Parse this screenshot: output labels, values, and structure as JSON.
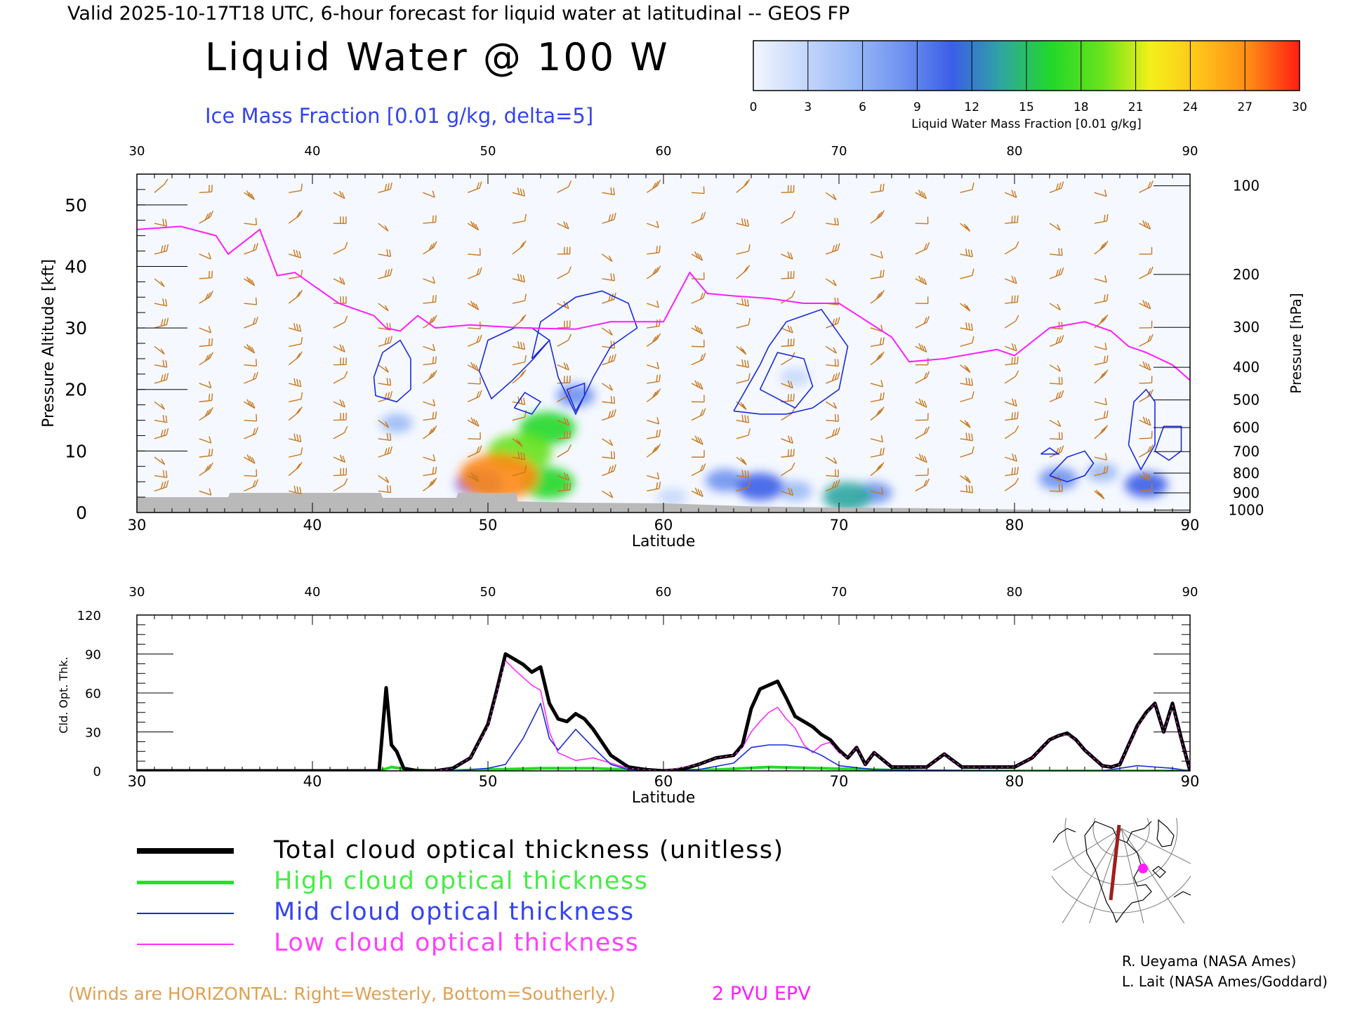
{
  "header": {
    "valid_line": "Valid 2025-10-17T18 UTC, 6-hour forecast for liquid water at latitudinal -- GEOS FP",
    "title": "Liquid Water @ 100 W",
    "subtitle": "Ice Mass Fraction [0.01 g/kg, delta=5]"
  },
  "colorbar": {
    "title": "Liquid Water Mass Fraction [0.01 g/kg]",
    "ticks": [
      "0",
      "3",
      "6",
      "9",
      "12",
      "15",
      "18",
      "21",
      "24",
      "27",
      "30"
    ],
    "colors": [
      "#f2f6ff",
      "#c6d8fb",
      "#9bbaf6",
      "#6f92f0",
      "#3b5ee8",
      "#2fa6a0",
      "#22d82a",
      "#66e21c",
      "#f3f01a",
      "#ffc31a",
      "#ff8a16",
      "#ff1e12"
    ]
  },
  "colors": {
    "ice_contour": "#1a2bdc",
    "epv": "#ff1dff",
    "wind_barb": "#c8781e",
    "terrain": "#b9b9b9",
    "total": "#000000",
    "high": "#22dd22",
    "mid": "#1a2bdc",
    "low": "#ff30ff",
    "map_track": "#a01e1e"
  },
  "chart_data": [
    {
      "type": "heatmap",
      "xlabel": "Latitude",
      "ylabel": "Pressure Altitude [kft]",
      "y2label": "Pressure [hPa]",
      "xlim": [
        30,
        90
      ],
      "ylim": [
        0,
        55
      ],
      "x_ticks": [
        "30",
        "40",
        "50",
        "60",
        "70",
        "80",
        "90"
      ],
      "y_ticks": [
        "0",
        "10",
        "20",
        "30",
        "40",
        "50"
      ],
      "pressure_ticks": [
        {
          "label": "100",
          "kft": 53.1
        },
        {
          "label": "200",
          "kft": 38.7
        },
        {
          "label": "300",
          "kft": 30.1
        },
        {
          "label": "400",
          "kft": 23.6
        },
        {
          "label": "500",
          "kft": 18.3
        },
        {
          "label": "600",
          "kft": 13.8
        },
        {
          "label": "700",
          "kft": 9.9
        },
        {
          "label": "800",
          "kft": 6.4
        },
        {
          "label": "900",
          "kft": 3.2
        },
        {
          "label": "1000",
          "kft": 0.4
        }
      ],
      "liquid_water_blobs": [
        {
          "lat": 50.6,
          "kft": 5.8,
          "value": 27
        },
        {
          "lat": 51.8,
          "kft": 9.7,
          "value": 20
        },
        {
          "lat": 53.4,
          "kft": 13.7,
          "value": 16
        },
        {
          "lat": 53.4,
          "kft": 4.8,
          "value": 15
        },
        {
          "lat": 49.5,
          "kft": 4.8,
          "value": 12
        },
        {
          "lat": 55.0,
          "kft": 19.0,
          "value": 8
        },
        {
          "lat": 44.8,
          "kft": 14.5,
          "value": 5
        },
        {
          "lat": 60.5,
          "kft": 2.5,
          "value": 4
        },
        {
          "lat": 65.5,
          "kft": 4.2,
          "value": 12
        },
        {
          "lat": 63.5,
          "kft": 5.2,
          "value": 8
        },
        {
          "lat": 67.5,
          "kft": 3.5,
          "value": 6
        },
        {
          "lat": 70.5,
          "kft": 2.6,
          "value": 13
        },
        {
          "lat": 72.0,
          "kft": 3.2,
          "value": 7
        },
        {
          "lat": 82.5,
          "kft": 5.5,
          "value": 8
        },
        {
          "lat": 87.5,
          "kft": 4.5,
          "value": 10
        },
        {
          "lat": 85.0,
          "kft": 6.5,
          "value": 5
        },
        {
          "lat": 67.5,
          "kft": 22.0,
          "value": 4
        }
      ],
      "terrain_kft": [
        [
          30,
          2.5
        ],
        [
          35.2,
          2.5
        ],
        [
          35.3,
          3.2
        ],
        [
          43.9,
          3.2
        ],
        [
          44.0,
          2.4
        ],
        [
          48.2,
          2.4
        ],
        [
          48.3,
          3.2
        ],
        [
          51.6,
          3.2
        ],
        [
          51.7,
          1.8
        ],
        [
          55,
          1.6
        ],
        [
          60,
          1.5
        ],
        [
          65,
          1.0
        ],
        [
          70,
          0.8
        ],
        [
          75,
          0.7
        ],
        [
          80,
          0.5
        ],
        [
          85,
          0.3
        ],
        [
          90,
          0.2
        ]
      ],
      "epv_2pvu_line": [
        [
          30,
          46
        ],
        [
          32.5,
          46.5
        ],
        [
          34.5,
          45
        ],
        [
          35.2,
          42
        ],
        [
          37,
          46
        ],
        [
          38,
          38.5
        ],
        [
          39,
          39
        ],
        [
          40,
          37
        ],
        [
          41.5,
          34
        ],
        [
          42.5,
          33
        ],
        [
          43.5,
          32
        ],
        [
          44.2,
          30
        ],
        [
          45,
          29.5
        ],
        [
          46,
          32
        ],
        [
          47,
          30
        ],
        [
          49,
          30.5
        ],
        [
          52,
          30
        ],
        [
          55,
          29.8
        ],
        [
          57,
          31
        ],
        [
          60,
          31
        ],
        [
          61.5,
          39
        ],
        [
          62.5,
          35.6
        ],
        [
          64,
          35.2
        ],
        [
          66,
          34.8
        ],
        [
          68,
          34
        ],
        [
          70,
          34
        ],
        [
          73,
          28.5
        ],
        [
          74,
          24.5
        ],
        [
          76,
          25
        ],
        [
          79,
          26.5
        ],
        [
          80,
          25.5
        ],
        [
          82,
          30
        ],
        [
          84,
          31
        ],
        [
          85.5,
          29.5
        ],
        [
          86.5,
          27
        ],
        [
          87.5,
          26
        ],
        [
          89,
          24
        ],
        [
          90,
          21.5
        ]
      ],
      "ice_contours": [
        [
          [
            43.5,
            22
          ],
          [
            44,
            26
          ],
          [
            45,
            28
          ],
          [
            45.6,
            25
          ],
          [
            45.6,
            20
          ],
          [
            44.8,
            18
          ],
          [
            43.6,
            19
          ],
          [
            43.5,
            22
          ]
        ],
        [
          [
            49.5,
            23
          ],
          [
            50,
            28
          ],
          [
            51.5,
            30
          ],
          [
            52.5,
            30
          ],
          [
            53.5,
            28
          ],
          [
            52.6,
            25
          ],
          [
            51.4,
            21.5
          ],
          [
            50.2,
            18.5
          ],
          [
            49.5,
            23
          ]
        ],
        [
          [
            51.5,
            17
          ],
          [
            52.5,
            16
          ],
          [
            53,
            18
          ],
          [
            52.1,
            19.5
          ],
          [
            51.5,
            17
          ]
        ],
        [
          [
            52.5,
            25
          ],
          [
            53,
            31
          ],
          [
            55,
            35
          ],
          [
            56.5,
            36
          ],
          [
            58,
            34
          ],
          [
            58.5,
            30
          ],
          [
            57,
            27
          ],
          [
            56,
            22
          ],
          [
            55,
            16
          ],
          [
            54,
            22
          ],
          [
            53.5,
            28
          ],
          [
            52.5,
            25
          ]
        ],
        [
          [
            54.5,
            20
          ],
          [
            55,
            16.5
          ],
          [
            55.5,
            19
          ],
          [
            55.5,
            21
          ],
          [
            54.5,
            20
          ]
        ],
        [
          [
            64,
            16.5
          ],
          [
            65.5,
            24
          ],
          [
            66,
            27
          ],
          [
            67,
            31
          ],
          [
            69,
            33
          ],
          [
            70.5,
            27
          ],
          [
            70,
            20
          ],
          [
            68.5,
            17
          ],
          [
            67,
            16
          ],
          [
            65.5,
            16
          ],
          [
            64,
            16.5
          ]
        ],
        [
          [
            65.5,
            20
          ],
          [
            66.5,
            26
          ],
          [
            68,
            25
          ],
          [
            68.5,
            20.5
          ],
          [
            67.5,
            17
          ],
          [
            65.5,
            20
          ]
        ],
        [
          [
            81.5,
            9.5
          ],
          [
            82,
            10.5
          ],
          [
            82.5,
            9.5
          ],
          [
            81.5,
            9.5
          ]
        ],
        [
          [
            82,
            6
          ],
          [
            83,
            9
          ],
          [
            84,
            10
          ],
          [
            84.5,
            8
          ],
          [
            84,
            6
          ],
          [
            83,
            5
          ],
          [
            82,
            6
          ]
        ],
        [
          [
            86.5,
            11
          ],
          [
            86.8,
            18
          ],
          [
            87.5,
            20
          ],
          [
            88,
            18
          ],
          [
            88,
            11
          ],
          [
            87.2,
            7
          ],
          [
            86.5,
            11
          ]
        ],
        [
          [
            88,
            10
          ],
          [
            88.5,
            14
          ],
          [
            89.5,
            14
          ],
          [
            89.5,
            10
          ],
          [
            88.8,
            8.5
          ],
          [
            88,
            10
          ]
        ]
      ]
    },
    {
      "type": "line",
      "xlabel": "Latitude",
      "ylabel": "Cld. Opt. Thk.",
      "xlim": [
        30,
        90
      ],
      "ylim": [
        0,
        120
      ],
      "x_ticks": [
        "30",
        "40",
        "50",
        "60",
        "70",
        "80",
        "90"
      ],
      "y_ticks": [
        "0",
        "30",
        "60",
        "90",
        "120"
      ],
      "series": [
        {
          "key": "total",
          "x": [
            30,
            43.8,
            44.2,
            44.5,
            44.8,
            45.2,
            46,
            47,
            48,
            49,
            50,
            50.5,
            51,
            51.5,
            52,
            52.5,
            53,
            53.5,
            54,
            54.5,
            55,
            55.5,
            56,
            57,
            58,
            59,
            60,
            61,
            62,
            63,
            64,
            64.5,
            65,
            65.5,
            66,
            66.5,
            67,
            67.5,
            68,
            68.5,
            69,
            69.5,
            70,
            70.5,
            71,
            71.5,
            72,
            73,
            74,
            75,
            76,
            77,
            78,
            79,
            80,
            81,
            82,
            82.5,
            83,
            83.5,
            84,
            84.5,
            85,
            85.5,
            86,
            86.5,
            87,
            87.5,
            88,
            88.5,
            89,
            89.5,
            90
          ],
          "values": [
            0,
            0,
            64,
            20,
            15,
            2,
            0,
            0,
            2,
            10,
            36,
            62,
            90,
            86,
            82,
            76,
            80,
            52,
            40,
            38,
            44,
            40,
            32,
            12,
            3,
            1,
            0,
            1,
            5,
            10,
            12,
            20,
            48,
            63,
            66,
            69,
            56,
            42,
            38,
            34,
            28,
            24,
            16,
            10,
            18,
            5,
            14,
            3,
            3,
            3,
            13,
            3,
            3,
            3,
            3,
            10,
            24,
            27,
            29,
            24,
            16,
            10,
            4,
            3,
            5,
            20,
            35,
            45,
            52,
            30,
            52,
            25,
            0
          ]
        },
        {
          "key": "high",
          "x": [
            30,
            43.8,
            44.5,
            45.5,
            47,
            50,
            53,
            56,
            58,
            60,
            63,
            66,
            69,
            72,
            75,
            80,
            90
          ],
          "values": [
            0,
            0,
            3,
            1,
            0,
            1,
            2,
            2,
            1,
            0,
            1,
            3,
            2,
            1,
            0,
            0,
            0
          ]
        },
        {
          "key": "mid",
          "x": [
            30,
            43.8,
            44.2,
            44.5,
            44.8,
            45.2,
            46,
            48,
            50,
            51,
            52,
            53,
            53.5,
            54,
            55,
            56,
            57,
            58,
            60,
            62,
            64,
            65,
            66,
            67,
            68,
            69,
            70,
            72,
            80,
            85,
            86,
            87,
            88,
            89,
            90
          ],
          "values": [
            0,
            0,
            62,
            20,
            14,
            2,
            0,
            0,
            2,
            5,
            25,
            52,
            25,
            16,
            32,
            18,
            5,
            1,
            0,
            1,
            6,
            18,
            20,
            20,
            18,
            12,
            4,
            1,
            0,
            0,
            2,
            4,
            3,
            2,
            0
          ]
        },
        {
          "key": "low",
          "x": [
            30,
            43.8,
            45,
            47,
            48,
            49,
            50,
            50.5,
            51,
            51.5,
            52,
            52.5,
            53,
            53.5,
            54,
            55,
            56,
            57,
            58,
            60,
            62,
            63,
            64,
            64.5,
            65,
            65.5,
            66,
            66.5,
            67,
            67.5,
            68,
            68.5,
            69,
            69.5,
            70,
            70.5,
            71,
            71.5,
            72,
            73,
            74,
            75,
            76,
            77,
            78,
            79,
            80,
            81,
            82,
            82.5,
            83,
            83.5,
            84,
            84.5,
            85,
            85.5,
            86,
            86.5,
            87,
            87.5,
            88,
            88.5,
            89,
            89.5,
            90
          ],
          "values": [
            0,
            0,
            0,
            0,
            2,
            10,
            34,
            60,
            85,
            78,
            72,
            66,
            62,
            30,
            14,
            8,
            10,
            6,
            2,
            0,
            5,
            10,
            12,
            18,
            30,
            38,
            45,
            49,
            40,
            33,
            20,
            14,
            20,
            22,
            14,
            10,
            18,
            5,
            14,
            3,
            3,
            3,
            13,
            3,
            3,
            3,
            3,
            10,
            24,
            27,
            28,
            24,
            16,
            10,
            4,
            3,
            5,
            20,
            34,
            44,
            52,
            30,
            50,
            24,
            0
          ]
        }
      ]
    }
  ],
  "legend": [
    {
      "key": "total",
      "label": "Total cloud optical thickness (unitless)",
      "color": "#000000"
    },
    {
      "key": "high",
      "label": "High cloud optical thickness",
      "color": "#22dd22"
    },
    {
      "key": "mid",
      "label": "Mid cloud optical thickness",
      "color": "#1a2bdc"
    },
    {
      "key": "low",
      "label": "Low cloud optical thickness",
      "color": "#ff30ff"
    }
  ],
  "footer": {
    "winds_note": "(Winds are HORIZONTAL: Right=Westerly, Bottom=Southerly.)",
    "epv_label": "2 PVU EPV",
    "credit1": "R. Ueyama (NASA Ames)",
    "credit2": "L. Lait (NASA Ames/Goddard)"
  },
  "map": {
    "track_lon": -100,
    "track_lat": [
      30,
      90
    ]
  }
}
